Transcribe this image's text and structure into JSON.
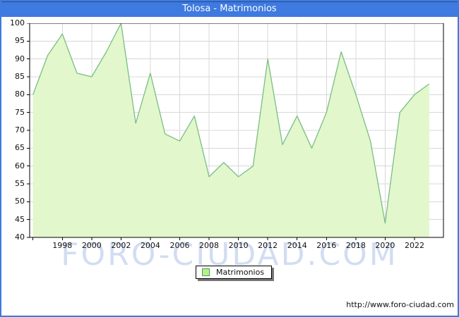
{
  "window": {
    "title": "Tolosa - Matrimonios",
    "watermark": "FORO-CIUDAD.COM",
    "url": "http://www.foro-ciudad.com",
    "titlebar_color": "#3e7adf"
  },
  "legend": {
    "label": "Matrimonios",
    "swatch_fill": "#b5ef8e",
    "swatch_border": "#4e9b4e"
  },
  "chart_data": {
    "type": "area",
    "title": "Tolosa - Matrimonios",
    "series_name": "Matrimonios",
    "x": [
      1996,
      1997,
      1998,
      1999,
      2000,
      2001,
      2002,
      2003,
      2004,
      2005,
      2006,
      2007,
      2008,
      2009,
      2010,
      2011,
      2012,
      2013,
      2014,
      2015,
      2016,
      2017,
      2018,
      2019,
      2020,
      2021,
      2022,
      2023
    ],
    "values": [
      80,
      91,
      97,
      86,
      85,
      92,
      100,
      72,
      86,
      69,
      67,
      74,
      57,
      61,
      57,
      60,
      90,
      66,
      74,
      65,
      75,
      92,
      80,
      67,
      44,
      75,
      80,
      83
    ],
    "ylim": [
      40,
      100
    ],
    "ytick_step": 5,
    "xtick_labels": [
      "1998",
      "2000",
      "2002",
      "2004",
      "2006",
      "2008",
      "2010",
      "2012",
      "2014",
      "2016",
      "2018",
      "2020",
      "2022"
    ],
    "grid": true,
    "legend_position": "bottom-center",
    "colors": {
      "fill": "#e2f7cb",
      "line": "#7abd85",
      "grid": "#d8d8d8",
      "axis": "#000000"
    }
  }
}
